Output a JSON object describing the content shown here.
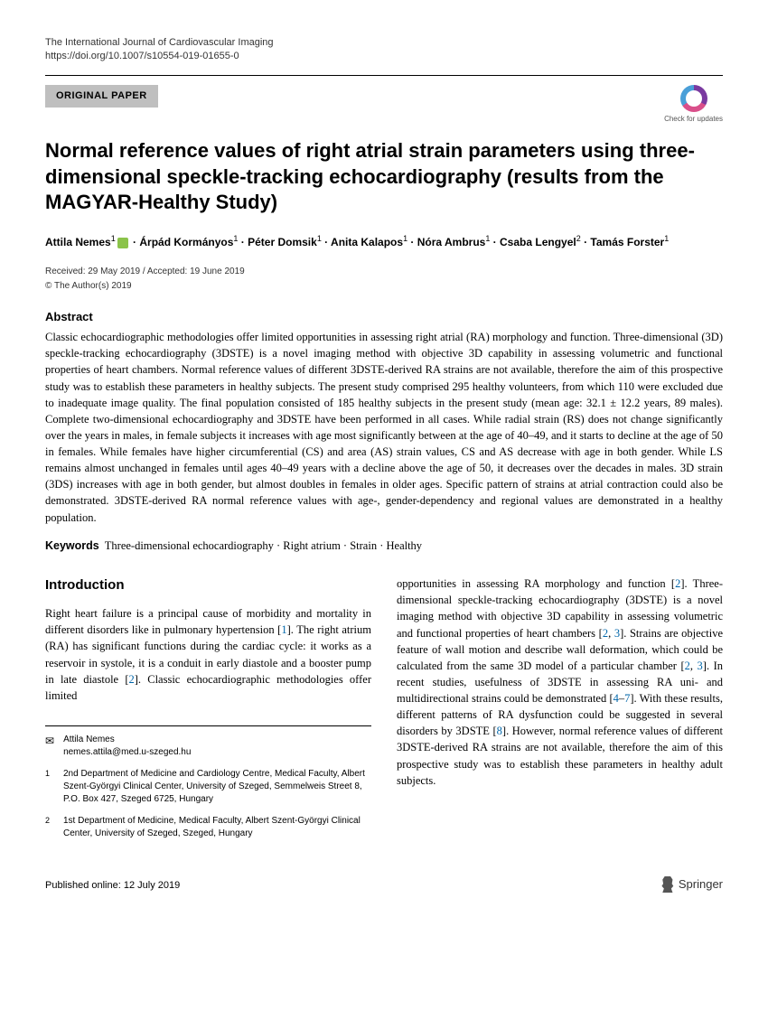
{
  "journal": "The International Journal of Cardiovascular Imaging",
  "doi": "https://doi.org/10.1007/s10554-019-01655-0",
  "article_type": "ORIGINAL PAPER",
  "check_updates_label": "Check for updates",
  "title": "Normal reference values of right atrial strain parameters using three-dimensional speckle-tracking echocardiography (results from the MAGYAR-Healthy Study)",
  "authors_html": "Attila Nemes<sup>1</sup> · Árpád Kormányos<sup>1</sup> · Péter Domsik<sup>1</sup> · Anita Kalapos<sup>1</sup> · Nóra Ambrus<sup>1</sup> · Csaba Lengyel<sup>2</sup> · Tamás Forster<sup>1</sup>",
  "dates": "Received: 29 May 2019 / Accepted: 19 June 2019",
  "copyright": "© The Author(s) 2019",
  "abstract_heading": "Abstract",
  "abstract_text": "Classic echocardiographic methodologies offer limited opportunities in assessing right atrial (RA) morphology and function. Three-dimensional (3D) speckle-tracking echocardiography (3DSTE) is a novel imaging method with objective 3D capability in assessing volumetric and functional properties of heart chambers. Normal reference values of different 3DSTE-derived RA strains are not available, therefore the aim of this prospective study was to establish these parameters in healthy subjects. The present study comprised 295 healthy volunteers, from which 110 were excluded due to inadequate image quality. The final population consisted of 185 healthy subjects in the present study (mean age: 32.1 ± 12.2 years, 89 males). Complete two-dimensional echocardiography and 3DSTE have been performed in all cases. While radial strain (RS) does not change significantly over the years in males, in female subjects it increases with age most significantly between at the age of 40–49, and it starts to decline at the age of 50 in females. While females have higher circumferential (CS) and area (AS) strain values, CS and AS decrease with age in both gender. While LS remains almost unchanged in females until ages 40–49 years with a decline above the age of 50, it decreases over the decades in males. 3D strain (3DS) increases with age in both gender, but almost doubles in females in older ages. Specific pattern of strains at atrial contraction could also be demonstrated. 3DSTE-derived RA normal reference values with age-, gender-dependency and regional values are demonstrated in a healthy population.",
  "keywords_heading": "Keywords",
  "keywords": "Three-dimensional echocardiography · Right atrium · Strain · Healthy",
  "intro_heading": "Introduction",
  "intro_col1": "Right heart failure is a principal cause of morbidity and mortality in different disorders like in pulmonary hypertension [1]. The right atrium (RA) has significant functions during the cardiac cycle: it works as a reservoir in systole, it is a conduit in early diastole and a booster pump in late diastole [2]. Classic echocardiographic methodologies offer limited",
  "intro_col2": "opportunities in assessing RA morphology and function [2]. Three-dimensional speckle-tracking echocardiography (3DSTE) is a novel imaging method with objective 3D capability in assessing volumetric and functional properties of heart chambers [2, 3]. Strains are objective feature of wall motion and describe wall deformation, which could be calculated from the same 3D model of a particular chamber [2, 3]. In recent studies, usefulness of 3DSTE in assessing RA uni- and multidirectional strains could be demonstrated [4–7]. With these results, different patterns of RA dysfunction could be suggested in several disorders by 3DSTE [8]. However, normal reference values of different 3DSTE-derived RA strains are not available, therefore the aim of this prospective study was to establish these parameters in healthy adult subjects.",
  "corr_author": "Attila Nemes",
  "corr_email": "nemes.attila@med.u-szeged.hu",
  "affiliations": [
    {
      "num": "1",
      "text": "2nd Department of Medicine and Cardiology Centre, Medical Faculty, Albert Szent-Györgyi Clinical Center, University of Szeged, Semmelweis Street 8, P.O. Box 427, Szeged 6725, Hungary"
    },
    {
      "num": "2",
      "text": "1st Department of Medicine, Medical Faculty, Albert Szent-Györgyi Clinical Center, University of Szeged, Szeged, Hungary"
    }
  ],
  "published_online": "Published online: 12 July 2019",
  "publisher": "Springer",
  "colors": {
    "badge_bg": "#bfbfbf",
    "link": "#0066aa",
    "orcid": "#8bc34a"
  }
}
